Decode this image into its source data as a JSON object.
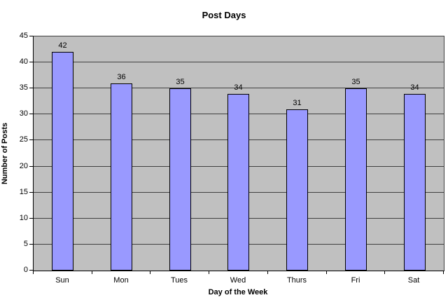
{
  "chart_data": {
    "type": "bar",
    "title": "Post Days",
    "xlabel": "Day of the Week",
    "ylabel": "Number of Posts",
    "categories": [
      "Sun",
      "Mon",
      "Tues",
      "Wed",
      "Thurs",
      "Fri",
      "Sat"
    ],
    "values": [
      42,
      36,
      35,
      34,
      31,
      35,
      34
    ],
    "ylim": [
      0,
      45
    ],
    "ytick_step": 5,
    "grid": true,
    "legend": false,
    "data_labels": true,
    "colors": {
      "bar_fill": "#9999ff",
      "bar_border": "#000000",
      "plot_background": "#c0c0c0",
      "gridline": "#404040",
      "axis": "#000000",
      "text": "#000000",
      "page_background": "#ffffff"
    }
  }
}
